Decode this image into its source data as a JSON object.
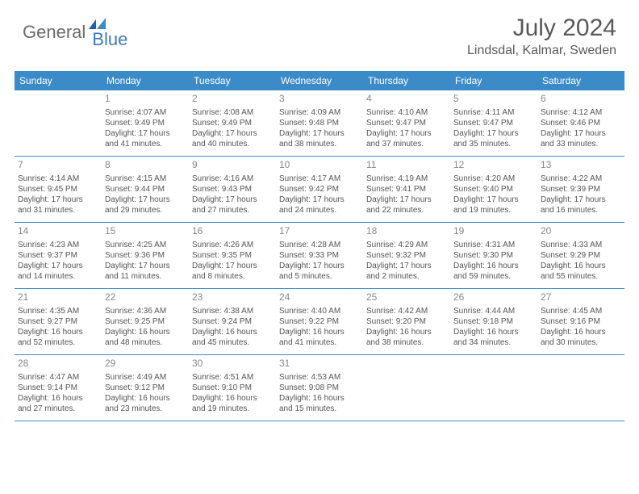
{
  "logo": {
    "text1": "General",
    "text2": "Blue"
  },
  "title": "July 2024",
  "location": "Lindsdal, Kalmar, Sweden",
  "header_bg": "#3b8bc9",
  "dayNames": [
    "Sunday",
    "Monday",
    "Tuesday",
    "Wednesday",
    "Thursday",
    "Friday",
    "Saturday"
  ],
  "startOffset": 1,
  "days": [
    {
      "n": 1,
      "sr": "4:07 AM",
      "ss": "9:49 PM",
      "dl": "17 hours and 41 minutes."
    },
    {
      "n": 2,
      "sr": "4:08 AM",
      "ss": "9:49 PM",
      "dl": "17 hours and 40 minutes."
    },
    {
      "n": 3,
      "sr": "4:09 AM",
      "ss": "9:48 PM",
      "dl": "17 hours and 38 minutes."
    },
    {
      "n": 4,
      "sr": "4:10 AM",
      "ss": "9:47 PM",
      "dl": "17 hours and 37 minutes."
    },
    {
      "n": 5,
      "sr": "4:11 AM",
      "ss": "9:47 PM",
      "dl": "17 hours and 35 minutes."
    },
    {
      "n": 6,
      "sr": "4:12 AM",
      "ss": "9:46 PM",
      "dl": "17 hours and 33 minutes."
    },
    {
      "n": 7,
      "sr": "4:14 AM",
      "ss": "9:45 PM",
      "dl": "17 hours and 31 minutes."
    },
    {
      "n": 8,
      "sr": "4:15 AM",
      "ss": "9:44 PM",
      "dl": "17 hours and 29 minutes."
    },
    {
      "n": 9,
      "sr": "4:16 AM",
      "ss": "9:43 PM",
      "dl": "17 hours and 27 minutes."
    },
    {
      "n": 10,
      "sr": "4:17 AM",
      "ss": "9:42 PM",
      "dl": "17 hours and 24 minutes."
    },
    {
      "n": 11,
      "sr": "4:19 AM",
      "ss": "9:41 PM",
      "dl": "17 hours and 22 minutes."
    },
    {
      "n": 12,
      "sr": "4:20 AM",
      "ss": "9:40 PM",
      "dl": "17 hours and 19 minutes."
    },
    {
      "n": 13,
      "sr": "4:22 AM",
      "ss": "9:39 PM",
      "dl": "17 hours and 16 minutes."
    },
    {
      "n": 14,
      "sr": "4:23 AM",
      "ss": "9:37 PM",
      "dl": "17 hours and 14 minutes."
    },
    {
      "n": 15,
      "sr": "4:25 AM",
      "ss": "9:36 PM",
      "dl": "17 hours and 11 minutes."
    },
    {
      "n": 16,
      "sr": "4:26 AM",
      "ss": "9:35 PM",
      "dl": "17 hours and 8 minutes."
    },
    {
      "n": 17,
      "sr": "4:28 AM",
      "ss": "9:33 PM",
      "dl": "17 hours and 5 minutes."
    },
    {
      "n": 18,
      "sr": "4:29 AM",
      "ss": "9:32 PM",
      "dl": "17 hours and 2 minutes."
    },
    {
      "n": 19,
      "sr": "4:31 AM",
      "ss": "9:30 PM",
      "dl": "16 hours and 59 minutes."
    },
    {
      "n": 20,
      "sr": "4:33 AM",
      "ss": "9:29 PM",
      "dl": "16 hours and 55 minutes."
    },
    {
      "n": 21,
      "sr": "4:35 AM",
      "ss": "9:27 PM",
      "dl": "16 hours and 52 minutes."
    },
    {
      "n": 22,
      "sr": "4:36 AM",
      "ss": "9:25 PM",
      "dl": "16 hours and 48 minutes."
    },
    {
      "n": 23,
      "sr": "4:38 AM",
      "ss": "9:24 PM",
      "dl": "16 hours and 45 minutes."
    },
    {
      "n": 24,
      "sr": "4:40 AM",
      "ss": "9:22 PM",
      "dl": "16 hours and 41 minutes."
    },
    {
      "n": 25,
      "sr": "4:42 AM",
      "ss": "9:20 PM",
      "dl": "16 hours and 38 minutes."
    },
    {
      "n": 26,
      "sr": "4:44 AM",
      "ss": "9:18 PM",
      "dl": "16 hours and 34 minutes."
    },
    {
      "n": 27,
      "sr": "4:45 AM",
      "ss": "9:16 PM",
      "dl": "16 hours and 30 minutes."
    },
    {
      "n": 28,
      "sr": "4:47 AM",
      "ss": "9:14 PM",
      "dl": "16 hours and 27 minutes."
    },
    {
      "n": 29,
      "sr": "4:49 AM",
      "ss": "9:12 PM",
      "dl": "16 hours and 23 minutes."
    },
    {
      "n": 30,
      "sr": "4:51 AM",
      "ss": "9:10 PM",
      "dl": "16 hours and 19 minutes."
    },
    {
      "n": 31,
      "sr": "4:53 AM",
      "ss": "9:08 PM",
      "dl": "16 hours and 15 minutes."
    }
  ],
  "labels": {
    "sunrise": "Sunrise:",
    "sunset": "Sunset:",
    "daylight": "Daylight:"
  }
}
